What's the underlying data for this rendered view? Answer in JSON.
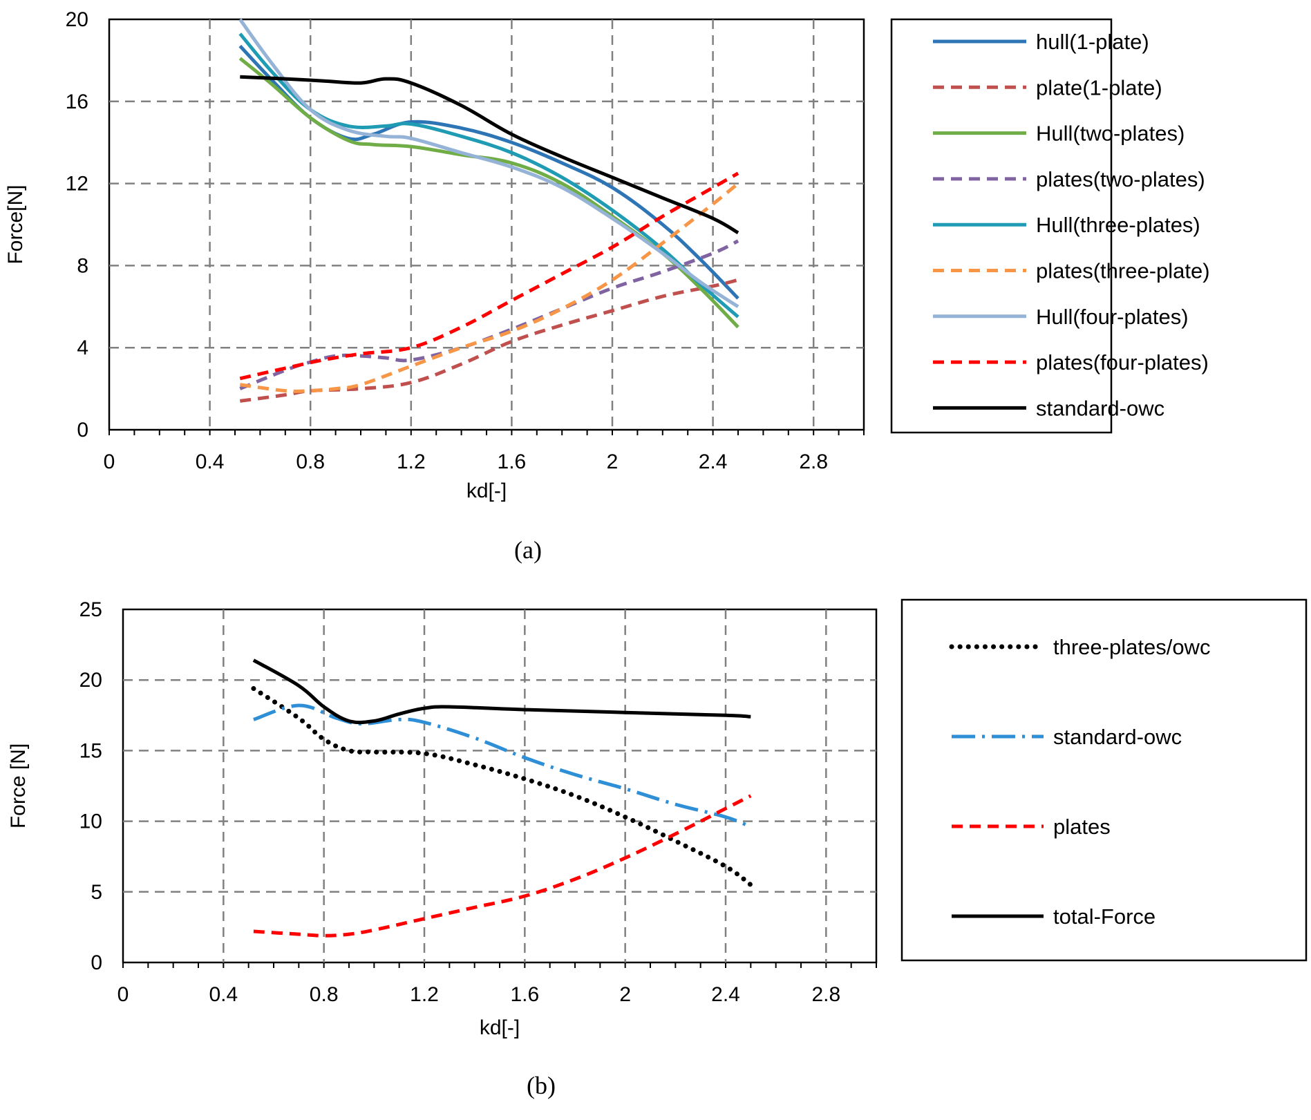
{
  "chart_data": [
    {
      "type": "line",
      "panel_label": "(a)",
      "title": "",
      "xlabel": "kd[-]",
      "ylabel": "Force[N]",
      "xlim": [
        0,
        3.0
      ],
      "ylim": [
        0,
        20
      ],
      "xticks": [
        "0",
        "0.4",
        "0.8",
        "1.2",
        "1.6",
        "2",
        "2.4",
        "2.8"
      ],
      "yticks": [
        "0",
        "4",
        "8",
        "12",
        "16",
        "20"
      ],
      "grid": true,
      "legend_position": "right",
      "series": [
        {
          "name": "hull(1-plate)",
          "color": "#2e75b6",
          "dash": "solid",
          "x": [
            0.52,
            0.65,
            0.8,
            0.95,
            1.05,
            1.2,
            1.4,
            1.6,
            1.8,
            2.0,
            2.2,
            2.35,
            2.5
          ],
          "y": [
            18.7,
            17.0,
            15.2,
            14.2,
            14.4,
            15.0,
            14.7,
            14.0,
            13.0,
            11.8,
            10.0,
            8.3,
            6.4
          ]
        },
        {
          "name": "plate(1-plate)",
          "color": "#c0504d",
          "dash": "dashed",
          "x": [
            0.52,
            0.7,
            0.8,
            1.0,
            1.2,
            1.4,
            1.6,
            1.8,
            2.0,
            2.2,
            2.4,
            2.5
          ],
          "y": [
            1.4,
            1.7,
            1.9,
            2.0,
            2.3,
            3.2,
            4.3,
            5.1,
            5.8,
            6.5,
            7.0,
            7.3
          ]
        },
        {
          "name": "Hull(two-plates)",
          "color": "#70ad47",
          "dash": "solid",
          "x": [
            0.52,
            0.65,
            0.8,
            0.95,
            1.05,
            1.2,
            1.4,
            1.6,
            1.8,
            2.0,
            2.2,
            2.35,
            2.5
          ],
          "y": [
            18.1,
            16.8,
            15.2,
            14.1,
            13.9,
            13.8,
            13.4,
            13.0,
            12.0,
            10.4,
            8.6,
            6.9,
            5.0
          ]
        },
        {
          "name": "plates(two-plates)",
          "color": "#8064a2",
          "dash": "dashed",
          "x": [
            0.52,
            0.7,
            0.8,
            0.9,
            1.0,
            1.1,
            1.2,
            1.4,
            1.6,
            1.8,
            2.0,
            2.2,
            2.4,
            2.5
          ],
          "y": [
            2.0,
            2.9,
            3.3,
            3.6,
            3.6,
            3.5,
            3.4,
            4.0,
            4.9,
            5.9,
            6.9,
            7.7,
            8.6,
            9.2
          ]
        },
        {
          "name": "Hull(three-plates)",
          "color": "#1f9bb4",
          "dash": "solid",
          "x": [
            0.52,
            0.65,
            0.8,
            0.95,
            1.1,
            1.2,
            1.4,
            1.6,
            1.8,
            2.0,
            2.2,
            2.35,
            2.5
          ],
          "y": [
            19.3,
            17.4,
            15.6,
            14.8,
            14.8,
            14.9,
            14.3,
            13.5,
            12.3,
            10.7,
            8.8,
            7.1,
            5.5
          ]
        },
        {
          "name": "plates(three-plate)",
          "color": "#f79646",
          "dash": "dashed",
          "x": [
            0.52,
            0.7,
            0.8,
            0.9,
            1.0,
            1.2,
            1.4,
            1.6,
            1.8,
            2.0,
            2.2,
            2.4,
            2.5
          ],
          "y": [
            2.2,
            1.9,
            1.9,
            2.0,
            2.2,
            3.1,
            4.0,
            4.8,
            5.9,
            7.3,
            9.1,
            11.0,
            12.0
          ]
        },
        {
          "name": "Hull(four-plates)",
          "color": "#95b3d7",
          "dash": "solid",
          "x": [
            0.52,
            0.65,
            0.8,
            0.95,
            1.1,
            1.2,
            1.4,
            1.6,
            1.8,
            2.0,
            2.2,
            2.35,
            2.5
          ],
          "y": [
            20.0,
            17.8,
            15.6,
            14.6,
            14.3,
            14.2,
            13.5,
            12.8,
            11.8,
            10.3,
            8.6,
            7.2,
            6.0
          ]
        },
        {
          "name": "plates(four-plates)",
          "color": "#ff0000",
          "dash": "dashed",
          "x": [
            0.52,
            0.7,
            0.85,
            1.0,
            1.2,
            1.4,
            1.6,
            1.8,
            2.0,
            2.2,
            2.4,
            2.5
          ],
          "y": [
            2.5,
            3.0,
            3.4,
            3.7,
            4.0,
            5.0,
            6.3,
            7.6,
            8.9,
            10.4,
            11.8,
            12.5
          ]
        },
        {
          "name": "standard-owc",
          "color": "#000000",
          "dash": "solid",
          "x": [
            0.52,
            0.7,
            0.85,
            1.0,
            1.1,
            1.2,
            1.4,
            1.6,
            1.8,
            2.0,
            2.2,
            2.4,
            2.5
          ],
          "y": [
            17.2,
            17.1,
            17.0,
            16.9,
            17.1,
            16.9,
            15.8,
            14.4,
            13.3,
            12.3,
            11.3,
            10.3,
            9.6
          ]
        }
      ]
    },
    {
      "type": "line",
      "panel_label": "(b)",
      "title": "",
      "xlabel": "kd[-]",
      "ylabel": "Force [N]",
      "xlim": [
        0,
        3.0
      ],
      "ylim": [
        0,
        25
      ],
      "xticks": [
        "0",
        "0.4",
        "0.8",
        "1.2",
        "1.6",
        "2",
        "2.4",
        "2.8"
      ],
      "yticks": [
        "0",
        "5",
        "10",
        "15",
        "20",
        "25"
      ],
      "grid": true,
      "legend_position": "right",
      "series": [
        {
          "name": "three-plates/owc",
          "color": "#000000",
          "dash": "dotted",
          "x": [
            0.52,
            0.7,
            0.8,
            0.9,
            1.0,
            1.2,
            1.4,
            1.6,
            1.8,
            2.0,
            2.2,
            2.4,
            2.5
          ],
          "y": [
            19.4,
            17.3,
            15.8,
            15.0,
            14.9,
            14.8,
            14.0,
            13.0,
            11.8,
            10.3,
            8.6,
            6.8,
            5.5
          ]
        },
        {
          "name": "standard-owc",
          "color": "#2e8fd6",
          "dash": "dashdot",
          "x": [
            0.52,
            0.7,
            0.85,
            0.95,
            1.1,
            1.2,
            1.4,
            1.6,
            1.8,
            2.0,
            2.2,
            2.4,
            2.5
          ],
          "y": [
            17.2,
            18.2,
            17.3,
            16.9,
            17.2,
            17.0,
            15.9,
            14.5,
            13.3,
            12.3,
            11.2,
            10.3,
            9.6
          ]
        },
        {
          "name": "plates",
          "color": "#ff0000",
          "dash": "dashed",
          "x": [
            0.52,
            0.7,
            0.8,
            0.9,
            1.0,
            1.2,
            1.4,
            1.6,
            1.8,
            2.0,
            2.2,
            2.4,
            2.5
          ],
          "y": [
            2.2,
            2.0,
            1.9,
            2.0,
            2.3,
            3.1,
            3.9,
            4.7,
            5.9,
            7.4,
            9.1,
            10.9,
            11.8
          ]
        },
        {
          "name": "total-Force",
          "color": "#000000",
          "dash": "solid",
          "x": [
            0.52,
            0.7,
            0.8,
            0.9,
            1.0,
            1.1,
            1.2,
            1.3,
            1.6,
            2.0,
            2.4,
            2.5
          ],
          "y": [
            21.4,
            19.6,
            18.1,
            17.1,
            17.1,
            17.6,
            18.0,
            18.1,
            17.9,
            17.7,
            17.5,
            17.4
          ]
        }
      ]
    }
  ]
}
